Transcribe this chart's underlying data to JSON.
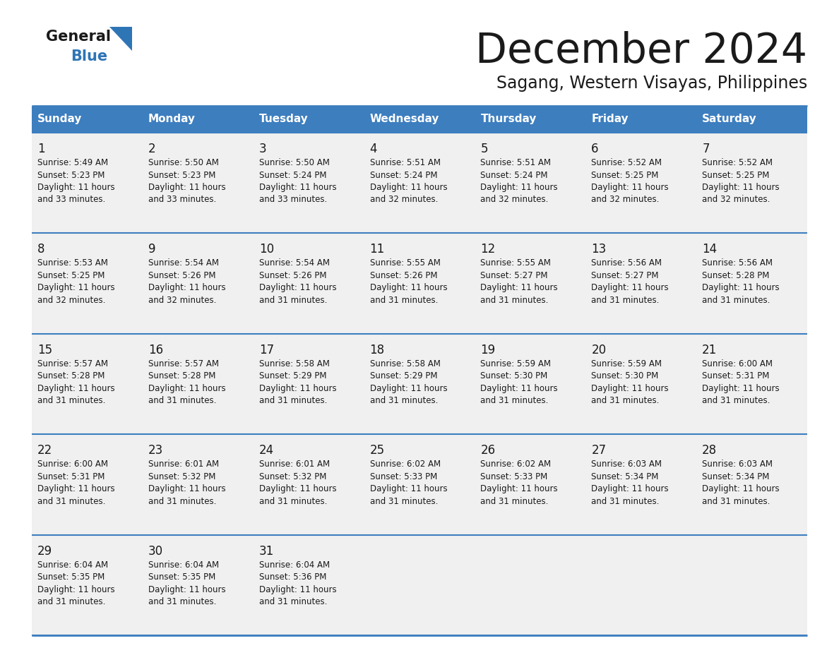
{
  "title": "December 2024",
  "subtitle": "Sagang, Western Visayas, Philippines",
  "header_bg_color": "#3D7EBF",
  "header_text_color": "#FFFFFF",
  "cell_bg_color_light": "#F0F0F0",
  "cell_bg_color_white": "#FFFFFF",
  "border_color": "#3D7EBF",
  "text_color": "#1a1a1a",
  "logo_general_color": "#1a1a1a",
  "logo_blue_color": "#2E75B6",
  "logo_triangle_color": "#2E75B6",
  "days_of_week": [
    "Sunday",
    "Monday",
    "Tuesday",
    "Wednesday",
    "Thursday",
    "Friday",
    "Saturday"
  ],
  "weeks": [
    [
      {
        "day": 1,
        "sunrise": "5:49 AM",
        "sunset": "5:23 PM",
        "daylight_hours": 11,
        "daylight_minutes": 33
      },
      {
        "day": 2,
        "sunrise": "5:50 AM",
        "sunset": "5:23 PM",
        "daylight_hours": 11,
        "daylight_minutes": 33
      },
      {
        "day": 3,
        "sunrise": "5:50 AM",
        "sunset": "5:24 PM",
        "daylight_hours": 11,
        "daylight_minutes": 33
      },
      {
        "day": 4,
        "sunrise": "5:51 AM",
        "sunset": "5:24 PM",
        "daylight_hours": 11,
        "daylight_minutes": 32
      },
      {
        "day": 5,
        "sunrise": "5:51 AM",
        "sunset": "5:24 PM",
        "daylight_hours": 11,
        "daylight_minutes": 32
      },
      {
        "day": 6,
        "sunrise": "5:52 AM",
        "sunset": "5:25 PM",
        "daylight_hours": 11,
        "daylight_minutes": 32
      },
      {
        "day": 7,
        "sunrise": "5:52 AM",
        "sunset": "5:25 PM",
        "daylight_hours": 11,
        "daylight_minutes": 32
      }
    ],
    [
      {
        "day": 8,
        "sunrise": "5:53 AM",
        "sunset": "5:25 PM",
        "daylight_hours": 11,
        "daylight_minutes": 32
      },
      {
        "day": 9,
        "sunrise": "5:54 AM",
        "sunset": "5:26 PM",
        "daylight_hours": 11,
        "daylight_minutes": 32
      },
      {
        "day": 10,
        "sunrise": "5:54 AM",
        "sunset": "5:26 PM",
        "daylight_hours": 11,
        "daylight_minutes": 31
      },
      {
        "day": 11,
        "sunrise": "5:55 AM",
        "sunset": "5:26 PM",
        "daylight_hours": 11,
        "daylight_minutes": 31
      },
      {
        "day": 12,
        "sunrise": "5:55 AM",
        "sunset": "5:27 PM",
        "daylight_hours": 11,
        "daylight_minutes": 31
      },
      {
        "day": 13,
        "sunrise": "5:56 AM",
        "sunset": "5:27 PM",
        "daylight_hours": 11,
        "daylight_minutes": 31
      },
      {
        "day": 14,
        "sunrise": "5:56 AM",
        "sunset": "5:28 PM",
        "daylight_hours": 11,
        "daylight_minutes": 31
      }
    ],
    [
      {
        "day": 15,
        "sunrise": "5:57 AM",
        "sunset": "5:28 PM",
        "daylight_hours": 11,
        "daylight_minutes": 31
      },
      {
        "day": 16,
        "sunrise": "5:57 AM",
        "sunset": "5:28 PM",
        "daylight_hours": 11,
        "daylight_minutes": 31
      },
      {
        "day": 17,
        "sunrise": "5:58 AM",
        "sunset": "5:29 PM",
        "daylight_hours": 11,
        "daylight_minutes": 31
      },
      {
        "day": 18,
        "sunrise": "5:58 AM",
        "sunset": "5:29 PM",
        "daylight_hours": 11,
        "daylight_minutes": 31
      },
      {
        "day": 19,
        "sunrise": "5:59 AM",
        "sunset": "5:30 PM",
        "daylight_hours": 11,
        "daylight_minutes": 31
      },
      {
        "day": 20,
        "sunrise": "5:59 AM",
        "sunset": "5:30 PM",
        "daylight_hours": 11,
        "daylight_minutes": 31
      },
      {
        "day": 21,
        "sunrise": "6:00 AM",
        "sunset": "5:31 PM",
        "daylight_hours": 11,
        "daylight_minutes": 31
      }
    ],
    [
      {
        "day": 22,
        "sunrise": "6:00 AM",
        "sunset": "5:31 PM",
        "daylight_hours": 11,
        "daylight_minutes": 31
      },
      {
        "day": 23,
        "sunrise": "6:01 AM",
        "sunset": "5:32 PM",
        "daylight_hours": 11,
        "daylight_minutes": 31
      },
      {
        "day": 24,
        "sunrise": "6:01 AM",
        "sunset": "5:32 PM",
        "daylight_hours": 11,
        "daylight_minutes": 31
      },
      {
        "day": 25,
        "sunrise": "6:02 AM",
        "sunset": "5:33 PM",
        "daylight_hours": 11,
        "daylight_minutes": 31
      },
      {
        "day": 26,
        "sunrise": "6:02 AM",
        "sunset": "5:33 PM",
        "daylight_hours": 11,
        "daylight_minutes": 31
      },
      {
        "day": 27,
        "sunrise": "6:03 AM",
        "sunset": "5:34 PM",
        "daylight_hours": 11,
        "daylight_minutes": 31
      },
      {
        "day": 28,
        "sunrise": "6:03 AM",
        "sunset": "5:34 PM",
        "daylight_hours": 11,
        "daylight_minutes": 31
      }
    ],
    [
      {
        "day": 29,
        "sunrise": "6:04 AM",
        "sunset": "5:35 PM",
        "daylight_hours": 11,
        "daylight_minutes": 31
      },
      {
        "day": 30,
        "sunrise": "6:04 AM",
        "sunset": "5:35 PM",
        "daylight_hours": 11,
        "daylight_minutes": 31
      },
      {
        "day": 31,
        "sunrise": "6:04 AM",
        "sunset": "5:36 PM",
        "daylight_hours": 11,
        "daylight_minutes": 31
      },
      null,
      null,
      null,
      null
    ]
  ]
}
